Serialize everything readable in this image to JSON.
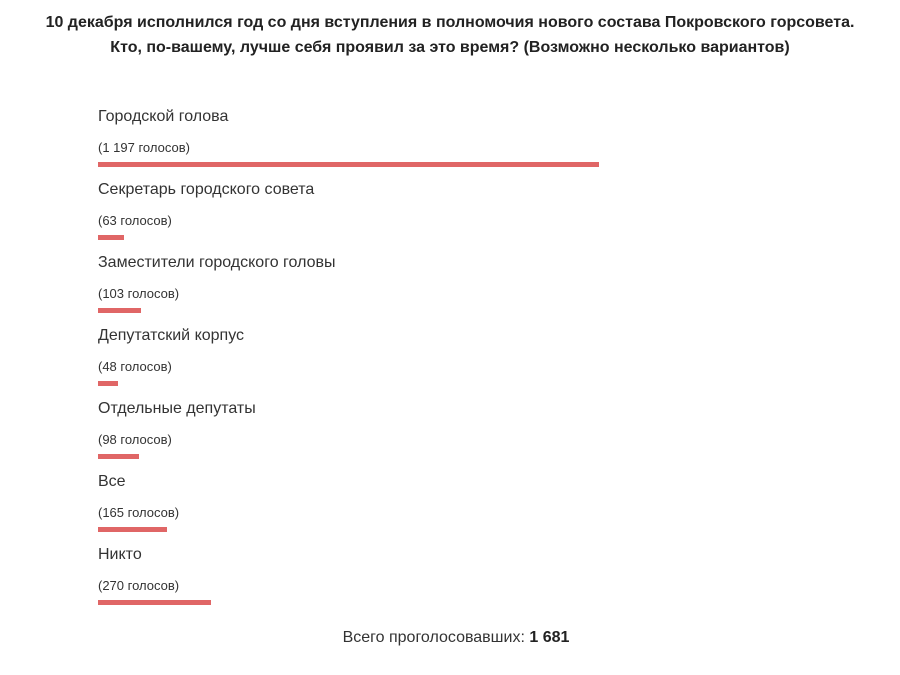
{
  "poll": {
    "question": "10 декабря исполнился год со дня вступления в полномочия нового состава Покровского горсовета. Кто, по-вашему, лучше себя проявил за это время? (Возможно несколько вариантов)",
    "bar_color": "#e06666",
    "options": [
      {
        "label": "Городской голова",
        "votes_text": "(1 197 голосов)",
        "votes": 1197
      },
      {
        "label": "Секретарь городского совета",
        "votes_text": "(63 голосов)",
        "votes": 63
      },
      {
        "label": "Заместители городского головы",
        "votes_text": "(103 голосов)",
        "votes": 103
      },
      {
        "label": "Депутатский корпус",
        "votes_text": "(48 голосов)",
        "votes": 48
      },
      {
        "label": "Отдельные депутаты",
        "votes_text": "(98 голосов)",
        "votes": 98
      },
      {
        "label": "Все",
        "votes_text": "(165 голосов)",
        "votes": 165
      },
      {
        "label": "Никто",
        "votes_text": "(270 голосов)",
        "votes": 270
      }
    ],
    "total_label": "Всего проголосовавших:",
    "total_value": "1 681"
  }
}
